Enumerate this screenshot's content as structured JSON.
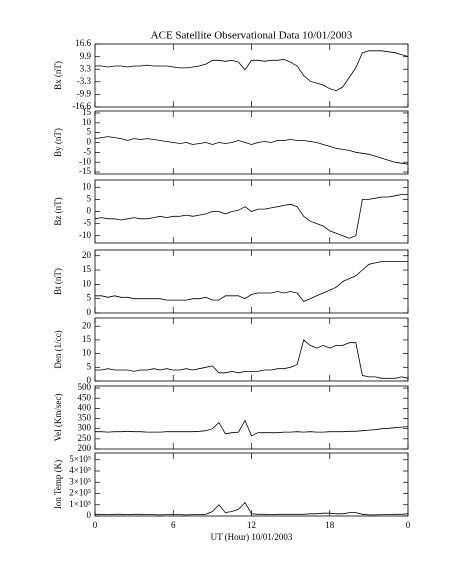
{
  "chart_data": [
    {
      "type": "line",
      "title": "ACE Satellite Observational Data  10/01/2003",
      "ylabel": "Bx (nT)",
      "x": [
        0,
        0.5,
        1,
        1.5,
        2,
        2.5,
        3,
        3.5,
        4,
        4.5,
        5,
        5.5,
        6,
        6.5,
        7,
        7.5,
        8,
        8.5,
        9,
        9.5,
        10,
        10.5,
        11,
        11.5,
        12,
        12.5,
        13,
        13.5,
        14,
        14.5,
        15,
        15.5,
        16,
        16.5,
        17,
        17.5,
        18,
        18.5,
        19,
        19.5,
        20,
        20.5,
        21,
        21.5,
        22,
        22.5,
        23,
        23.5,
        24
      ],
      "series": [
        {
          "color": "#000000",
          "values": [
            5,
            5,
            4.5,
            5,
            5,
            4.5,
            5,
            5,
            5.5,
            5,
            5,
            5,
            4.5,
            4,
            4,
            4.5,
            5,
            6,
            8,
            8,
            7.5,
            8,
            7,
            3,
            8,
            8,
            7.5,
            8,
            8,
            8.5,
            7,
            5,
            0,
            -3,
            -4,
            -5,
            -7,
            -8,
            -6,
            -1,
            4,
            12,
            13,
            13,
            13,
            12.5,
            12,
            11,
            10
          ]
        }
      ],
      "xlim": [
        0,
        24
      ],
      "ylim": [
        -16.6,
        16.6
      ],
      "yticks": [
        -16.6,
        -9.9,
        -3.3,
        3.3,
        9.9,
        16.6
      ]
    },
    {
      "type": "line",
      "ylabel": "By (nT)",
      "x": [
        0,
        0.5,
        1,
        1.5,
        2,
        2.5,
        3,
        3.5,
        4,
        4.5,
        5,
        5.5,
        6,
        6.5,
        7,
        7.5,
        8,
        8.5,
        9,
        9.5,
        10,
        10.5,
        11,
        11.5,
        12,
        12.5,
        13,
        13.5,
        14,
        14.5,
        15,
        15.5,
        16,
        16.5,
        17,
        17.5,
        18,
        18.5,
        19,
        19.5,
        20,
        20.5,
        21,
        21.5,
        22,
        22.5,
        23,
        23.5,
        24
      ],
      "series": [
        {
          "color": "#000000",
          "values": [
            2,
            2.5,
            3,
            2.5,
            2,
            1,
            2,
            1.5,
            2,
            1.5,
            1,
            0.5,
            0,
            -0.5,
            0,
            -1,
            -0.5,
            0,
            -1,
            0,
            -0.5,
            0,
            1,
            0,
            -1,
            0,
            0.5,
            0,
            1,
            1,
            1.5,
            1,
            1,
            0.5,
            0,
            -1,
            -2,
            -3,
            -3.5,
            -4,
            -5,
            -5.5,
            -6,
            -7,
            -8,
            -9,
            -10,
            -10.5,
            -11
          ]
        }
      ],
      "xlim": [
        0,
        24
      ],
      "ylim": [
        -16,
        16
      ],
      "yticks": [
        -15,
        -10,
        -5,
        0,
        5,
        10,
        15
      ]
    },
    {
      "type": "line",
      "ylabel": "Bz (nT)",
      "x": [
        0,
        0.5,
        1,
        1.5,
        2,
        2.5,
        3,
        3.5,
        4,
        4.5,
        5,
        5.5,
        6,
        6.5,
        7,
        7.5,
        8,
        8.5,
        9,
        9.5,
        10,
        10.5,
        11,
        11.5,
        12,
        12.5,
        13,
        13.5,
        14,
        14.5,
        15,
        15.5,
        16,
        16.5,
        17,
        17.5,
        18,
        18.5,
        19,
        19.5,
        20,
        20.5,
        21,
        21.5,
        22,
        22.5,
        23,
        23.5,
        24
      ],
      "series": [
        {
          "color": "#000000",
          "values": [
            -3,
            -2.5,
            -3,
            -3,
            -3.5,
            -3,
            -2.5,
            -3,
            -3,
            -2.5,
            -2,
            -2.5,
            -2,
            -2,
            -1.5,
            -2,
            -1.5,
            -1,
            0,
            0,
            -1,
            0,
            0.5,
            2,
            0,
            1,
            1,
            1.5,
            2,
            2.5,
            3,
            2,
            -2,
            -4,
            -5,
            -6,
            -8,
            -9,
            -10,
            -11,
            -10,
            5,
            5,
            5.5,
            6,
            6,
            6.5,
            7,
            7
          ]
        }
      ],
      "xlim": [
        0,
        24
      ],
      "ylim": [
        -13,
        13
      ],
      "yticks": [
        -10,
        -5,
        0,
        5,
        10
      ]
    },
    {
      "type": "line",
      "ylabel": "Bt (nT)",
      "x": [
        0,
        0.5,
        1,
        1.5,
        2,
        2.5,
        3,
        3.5,
        4,
        4.5,
        5,
        5.5,
        6,
        6.5,
        7,
        7.5,
        8,
        8.5,
        9,
        9.5,
        10,
        10.5,
        11,
        11.5,
        12,
        12.5,
        13,
        13.5,
        14,
        14.5,
        15,
        15.5,
        16,
        16.5,
        17,
        17.5,
        18,
        18.5,
        19,
        19.5,
        20,
        20.5,
        21,
        21.5,
        22,
        22.5,
        23,
        23.5,
        24
      ],
      "series": [
        {
          "color": "#000000",
          "values": [
            6,
            6,
            5.5,
            6,
            5.5,
            5.5,
            5,
            5,
            5,
            5,
            5,
            4.5,
            4.5,
            4.5,
            4.5,
            5,
            5,
            5.5,
            4.5,
            4.5,
            6,
            6,
            6,
            5,
            6.5,
            7,
            7,
            7,
            7.5,
            7,
            7.5,
            7,
            4,
            5,
            6,
            7,
            8,
            9,
            11,
            12,
            13,
            15,
            17,
            17.5,
            18,
            18,
            18,
            18,
            18
          ]
        }
      ],
      "xlim": [
        0,
        24
      ],
      "ylim": [
        0,
        22
      ],
      "yticks": [
        0,
        5,
        10,
        15,
        20
      ]
    },
    {
      "type": "line",
      "ylabel": "Den (1/cc)",
      "x": [
        0,
        0.5,
        1,
        1.5,
        2,
        2.5,
        3,
        3.5,
        4,
        4.5,
        5,
        5.5,
        6,
        6.5,
        7,
        7.5,
        8,
        8.5,
        9,
        9.5,
        10,
        10.5,
        11,
        11.5,
        12,
        12.5,
        13,
        13.5,
        14,
        14.5,
        15,
        15.5,
        16,
        16.5,
        17,
        17.5,
        18,
        18.5,
        19,
        19.5,
        20,
        20.5,
        21,
        21.5,
        22,
        22.5,
        23,
        23.5,
        24
      ],
      "series": [
        {
          "color": "#000000",
          "values": [
            4,
            4,
            4.5,
            4,
            4,
            4,
            3.5,
            4,
            4,
            4.5,
            4,
            4.5,
            4,
            4,
            4.5,
            4,
            4.5,
            5,
            5.5,
            3,
            3,
            3.5,
            3,
            3.5,
            3.5,
            3.5,
            4,
            4,
            4.5,
            4.5,
            5,
            6,
            15,
            13,
            12,
            13,
            12,
            13,
            13,
            14,
            14,
            2,
            1.5,
            1.5,
            1,
            1,
            1,
            1.5,
            1
          ]
        }
      ],
      "xlim": [
        0,
        24
      ],
      "ylim": [
        0,
        23
      ],
      "yticks": [
        0,
        5,
        10,
        15,
        20
      ]
    },
    {
      "type": "line",
      "ylabel": "Vel (Km/sec)",
      "x": [
        0,
        0.5,
        1,
        1.5,
        2,
        2.5,
        3,
        3.5,
        4,
        4.5,
        5,
        5.5,
        6,
        6.5,
        7,
        7.5,
        8,
        8.5,
        9,
        9.5,
        10,
        10.5,
        11,
        11.5,
        12,
        12.5,
        13,
        13.5,
        14,
        14.5,
        15,
        15.5,
        16,
        16.5,
        17,
        17.5,
        18,
        18.5,
        19,
        19.5,
        20,
        20.5,
        21,
        21.5,
        22,
        22.5,
        23,
        23.5,
        24
      ],
      "series": [
        {
          "color": "#000000",
          "values": [
            285,
            285,
            283,
            285,
            285,
            287,
            285,
            285,
            283,
            283,
            283,
            285,
            285,
            285,
            285,
            285,
            287,
            290,
            300,
            330,
            275,
            280,
            283,
            340,
            265,
            280,
            280,
            280,
            280,
            283,
            283,
            285,
            283,
            285,
            283,
            283,
            285,
            285,
            285,
            287,
            287,
            290,
            293,
            295,
            300,
            302,
            305,
            308,
            310
          ]
        }
      ],
      "xlim": [
        0,
        24
      ],
      "ylim": [
        200,
        510
      ],
      "yticks": [
        200,
        250,
        300,
        350,
        400,
        450,
        500
      ]
    },
    {
      "type": "line",
      "ylabel": "Ion Temp (K)",
      "xlabel": "UT (Hour)  10/01/2003",
      "x": [
        0,
        0.5,
        1,
        1.5,
        2,
        2.5,
        3,
        3.5,
        4,
        4.5,
        5,
        5.5,
        6,
        6.5,
        7,
        7.5,
        8,
        8.5,
        9,
        9.5,
        10,
        10.5,
        11,
        11.5,
        12,
        12.5,
        13,
        13.5,
        14,
        14.5,
        15,
        15.5,
        16,
        16.5,
        17,
        17.5,
        18,
        18.5,
        19,
        19.5,
        20,
        20.5,
        21,
        21.5,
        22,
        22.5,
        23,
        23.5,
        24
      ],
      "series": [
        {
          "color": "#000000",
          "values": [
            15000,
            15000,
            12000,
            15000,
            15000,
            12000,
            15000,
            15000,
            12000,
            12000,
            10000,
            12000,
            12000,
            12000,
            10000,
            12000,
            12000,
            15000,
            40000,
            100000,
            30000,
            40000,
            60000,
            120000,
            20000,
            15000,
            15000,
            12000,
            15000,
            15000,
            15000,
            15000,
            15000,
            20000,
            20000,
            25000,
            25000,
            20000,
            20000,
            30000,
            30000,
            15000,
            10000,
            10000,
            12000,
            12000,
            15000,
            15000,
            20000
          ]
        }
      ],
      "xlim": [
        0,
        24
      ],
      "ylim": [
        0,
        560000
      ],
      "yticks": [
        0,
        {
          "value": 100000,
          "label": "1×10⁵"
        },
        {
          "value": 200000,
          "label": "2×10⁵"
        },
        {
          "value": 300000,
          "label": "3×10⁵"
        },
        {
          "value": 400000,
          "label": "4×10⁵"
        },
        {
          "value": 500000,
          "label": "5×10⁵"
        }
      ],
      "xticks": [
        0,
        6,
        12,
        18,
        {
          "value": 24,
          "label": "0"
        }
      ]
    }
  ]
}
